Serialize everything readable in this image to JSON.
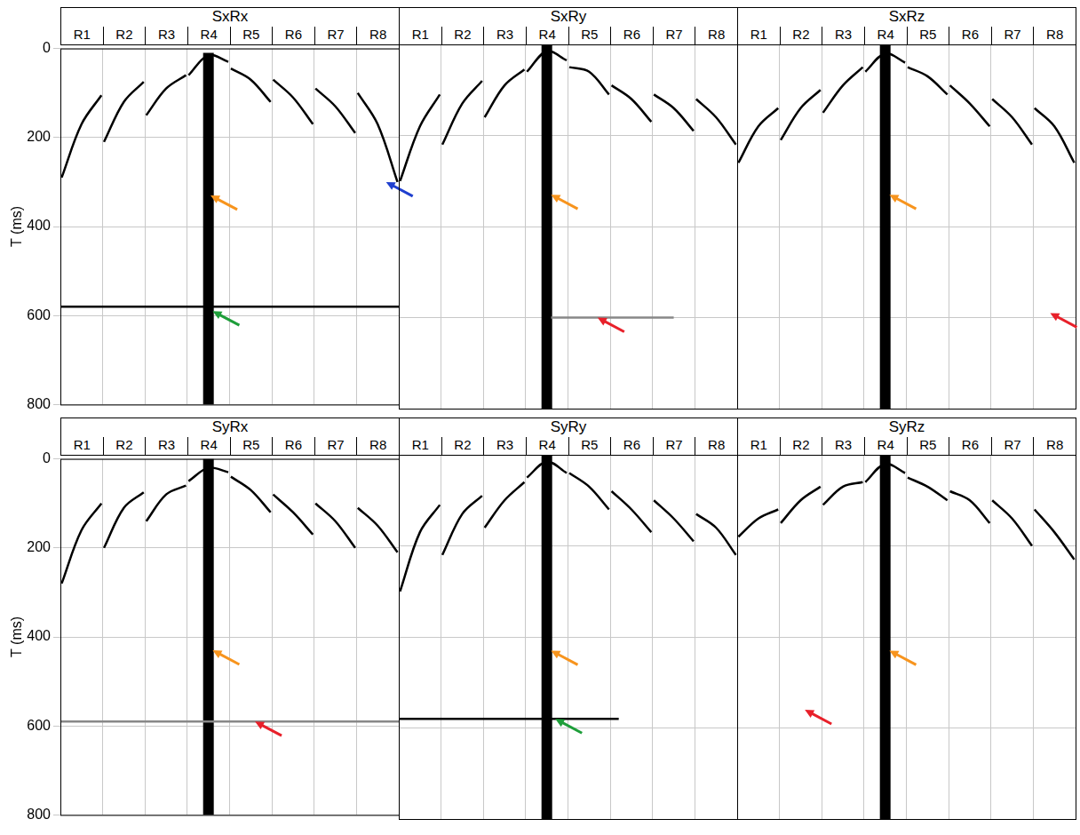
{
  "chart_data": [
    {
      "type": "line",
      "title": "SxRx",
      "categories": [
        "R1",
        "R2",
        "R3",
        "R4",
        "R5",
        "R6",
        "R7",
        "R8"
      ],
      "ylabel": "T (ms)",
      "xlim": [
        0,
        8
      ],
      "xticks": [
        0,
        1,
        2,
        3,
        4,
        5,
        6,
        7,
        8
      ],
      "ylim": [
        0,
        800
      ],
      "yticks": [
        0,
        200,
        400,
        600,
        800
      ],
      "grid": true,
      "tick_labels": "y",
      "series": [
        {
          "type": "line",
          "color": "#000000",
          "x": [
            0.03,
            0.5,
            0.97,
            null,
            1.03,
            1.5,
            1.97,
            null,
            2.03,
            2.5,
            2.97,
            null,
            3.03,
            3.5,
            3.97,
            null,
            4.03,
            4.5,
            4.97,
            null,
            5.03,
            5.5,
            5.97,
            null,
            6.03,
            6.5,
            6.97,
            null,
            7.03,
            7.5,
            7.97
          ],
          "values": [
            290,
            170,
            105,
            null,
            210,
            120,
            75,
            null,
            150,
            90,
            60,
            null,
            60,
            15,
            30,
            null,
            45,
            70,
            120,
            null,
            70,
            110,
            170,
            null,
            90,
            130,
            190,
            null,
            100,
            170,
            300
          ]
        },
        {
          "type": "line",
          "color": "#000000",
          "x": [
            0,
            8
          ],
          "values": [
            580,
            580
          ]
        },
        {
          "type": "band",
          "color": "#000000",
          "x": [
            3.5,
            3.5
          ],
          "values": [
            10,
            800
          ]
        }
      ],
      "arrows": [
        {
          "color": "#f7941d",
          "x": 3.55,
          "y": 330
        },
        {
          "color": "#1f3fcf",
          "x": 7.7,
          "y": 300
        },
        {
          "color": "#1e9e3a",
          "x": 3.6,
          "y": 590
        }
      ]
    },
    {
      "type": "line",
      "title": "SxRy",
      "categories": [
        "R1",
        "R2",
        "R3",
        "R4",
        "R5",
        "R6",
        "R7",
        "R8"
      ],
      "xlim": [
        0,
        8
      ],
      "xticks": [
        0,
        1,
        2,
        3,
        4,
        5,
        6,
        7,
        8
      ],
      "ylim": [
        0,
        800
      ],
      "yticks": [
        0,
        200,
        400,
        600,
        800
      ],
      "grid": true,
      "tick_labels": false,
      "series": [
        {
          "type": "line",
          "color": "#000000",
          "x": [
            0.03,
            0.5,
            0.97,
            null,
            1.03,
            1.5,
            1.97,
            null,
            2.03,
            2.5,
            2.97,
            null,
            3.03,
            3.5,
            3.97,
            null,
            4.03,
            4.5,
            4.97,
            null,
            5.03,
            5.5,
            5.97,
            null,
            6.03,
            6.5,
            6.97,
            null,
            7.03,
            7.5,
            7.97
          ],
          "values": [
            300,
            180,
            110,
            null,
            220,
            130,
            80,
            null,
            160,
            90,
            55,
            null,
            60,
            15,
            35,
            null,
            50,
            60,
            110,
            null,
            90,
            120,
            170,
            null,
            110,
            140,
            190,
            null,
            120,
            160,
            220
          ]
        },
        {
          "type": "line",
          "color": "#888888",
          "x": [
            3.6,
            6.5
          ],
          "values": [
            600,
            600
          ]
        },
        {
          "type": "band",
          "color": "#000000",
          "x": [
            3.5,
            3.5
          ],
          "values": [
            0,
            800
          ]
        }
      ],
      "arrows": [
        {
          "color": "#f7941d",
          "x": 3.6,
          "y": 330
        },
        {
          "color": "#e8202a",
          "x": 4.7,
          "y": 600
        }
      ]
    },
    {
      "type": "line",
      "title": "SxRz",
      "categories": [
        "R1",
        "R2",
        "R3",
        "R4",
        "R5",
        "R6",
        "R7",
        "R8"
      ],
      "xlim": [
        0,
        8
      ],
      "xticks": [
        0,
        1,
        2,
        3,
        4,
        5,
        6,
        7,
        8
      ],
      "ylim": [
        0,
        800
      ],
      "yticks": [
        0,
        200,
        400,
        600,
        800
      ],
      "grid": true,
      "tick_labels": false,
      "series": [
        {
          "type": "line",
          "color": "#000000",
          "x": [
            0.03,
            0.5,
            0.97,
            null,
            1.03,
            1.5,
            1.97,
            null,
            2.03,
            2.5,
            2.97,
            null,
            3.03,
            3.5,
            3.97,
            null,
            4.03,
            4.5,
            4.97,
            null,
            5.03,
            5.5,
            5.97,
            null,
            6.03,
            6.5,
            6.97,
            null,
            7.03,
            7.5,
            7.97
          ],
          "values": [
            260,
            180,
            140,
            null,
            210,
            140,
            100,
            null,
            150,
            90,
            50,
            null,
            60,
            20,
            40,
            null,
            50,
            70,
            110,
            null,
            90,
            130,
            180,
            null,
            120,
            160,
            220,
            null,
            140,
            180,
            260
          ]
        },
        {
          "type": "band",
          "color": "#000000",
          "x": [
            3.5,
            3.5
          ],
          "values": [
            0,
            800
          ]
        }
      ],
      "arrows": [
        {
          "color": "#f7941d",
          "x": 3.6,
          "y": 330
        },
        {
          "color": "#e8202a",
          "x": 7.4,
          "y": 590
        }
      ]
    },
    {
      "type": "line",
      "title": "SyRx",
      "categories": [
        "R1",
        "R2",
        "R3",
        "R4",
        "R5",
        "R6",
        "R7",
        "R8"
      ],
      "ylabel": "T (ms)",
      "xlim": [
        0,
        8
      ],
      "xticks": [
        0,
        1,
        2,
        3,
        4,
        5,
        6,
        7,
        8
      ],
      "ylim": [
        0,
        800
      ],
      "yticks": [
        0,
        200,
        400,
        600,
        800
      ],
      "grid": true,
      "tick_labels": "y",
      "series": [
        {
          "type": "line",
          "color": "#000000",
          "x": [
            0.03,
            0.5,
            0.97,
            null,
            1.03,
            1.5,
            1.97,
            null,
            2.03,
            2.5,
            2.97,
            null,
            3.03,
            3.5,
            3.97,
            null,
            4.03,
            4.5,
            4.97,
            null,
            5.03,
            5.5,
            5.97,
            null,
            6.03,
            6.5,
            6.97,
            null,
            7.03,
            7.5,
            7.97
          ],
          "values": [
            280,
            160,
            100,
            null,
            200,
            110,
            75,
            null,
            140,
            80,
            60,
            null,
            50,
            20,
            30,
            null,
            40,
            70,
            120,
            null,
            80,
            120,
            170,
            null,
            100,
            140,
            200,
            null,
            110,
            150,
            210
          ]
        },
        {
          "type": "line",
          "color": "#888888",
          "x": [
            0,
            8
          ],
          "values": [
            590,
            590
          ]
        },
        {
          "type": "band",
          "color": "#000000",
          "x": [
            3.5,
            3.5
          ],
          "values": [
            0,
            800
          ]
        }
      ],
      "arrows": [
        {
          "color": "#f7941d",
          "x": 3.6,
          "y": 430
        },
        {
          "color": "#e8202a",
          "x": 4.6,
          "y": 590
        }
      ]
    },
    {
      "type": "line",
      "title": "SyRy",
      "categories": [
        "R1",
        "R2",
        "R3",
        "R4",
        "R5",
        "R6",
        "R7",
        "R8"
      ],
      "xlim": [
        0,
        8
      ],
      "xticks": [
        0,
        1,
        2,
        3,
        4,
        5,
        6,
        7,
        8
      ],
      "ylim": [
        0,
        800
      ],
      "yticks": [
        0,
        200,
        400,
        600,
        800
      ],
      "grid": true,
      "tick_labels": false,
      "series": [
        {
          "type": "line",
          "color": "#000000",
          "x": [
            0.03,
            0.5,
            0.97,
            null,
            1.03,
            1.5,
            1.97,
            null,
            2.03,
            2.5,
            2.97,
            null,
            3.03,
            3.5,
            3.97,
            null,
            4.03,
            4.5,
            4.97,
            null,
            5.03,
            5.5,
            5.97,
            null,
            6.03,
            6.5,
            6.97,
            null,
            7.03,
            7.5,
            7.97
          ],
          "values": [
            300,
            170,
            110,
            null,
            220,
            130,
            90,
            null,
            160,
            100,
            60,
            null,
            50,
            15,
            40,
            null,
            40,
            70,
            120,
            null,
            80,
            120,
            170,
            null,
            100,
            140,
            190,
            null,
            130,
            160,
            220
          ]
        },
        {
          "type": "line",
          "color": "#000000",
          "x": [
            0,
            5.2
          ],
          "values": [
            580,
            580
          ]
        },
        {
          "type": "band",
          "color": "#000000",
          "x": [
            3.5,
            3.5
          ],
          "values": [
            0,
            800
          ]
        }
      ],
      "arrows": [
        {
          "color": "#f7941d",
          "x": 3.6,
          "y": 430
        },
        {
          "color": "#1e9e3a",
          "x": 3.7,
          "y": 580
        }
      ]
    },
    {
      "type": "line",
      "title": "SyRz",
      "categories": [
        "R1",
        "R2",
        "R3",
        "R4",
        "R5",
        "R6",
        "R7",
        "R8"
      ],
      "xlim": [
        0,
        8
      ],
      "xticks": [
        0,
        1,
        2,
        3,
        4,
        5,
        6,
        7,
        8
      ],
      "ylim": [
        0,
        800
      ],
      "yticks": [
        0,
        200,
        400,
        600,
        800
      ],
      "grid": true,
      "tick_labels": false,
      "series": [
        {
          "type": "line",
          "color": "#000000",
          "x": [
            0.03,
            0.5,
            0.97,
            null,
            1.03,
            1.5,
            1.97,
            null,
            2.03,
            2.5,
            2.97,
            null,
            3.03,
            3.5,
            3.97,
            null,
            4.03,
            4.5,
            4.97,
            null,
            5.03,
            5.5,
            5.97,
            null,
            6.03,
            6.5,
            6.97,
            null,
            7.03,
            7.5,
            7.97
          ],
          "values": [
            180,
            140,
            120,
            null,
            150,
            100,
            70,
            null,
            110,
            70,
            60,
            null,
            60,
            20,
            40,
            null,
            50,
            70,
            100,
            null,
            80,
            100,
            150,
            null,
            100,
            140,
            200,
            null,
            120,
            170,
            230
          ]
        },
        {
          "type": "band",
          "color": "#000000",
          "x": [
            3.5,
            3.5
          ],
          "values": [
            0,
            800
          ]
        }
      ],
      "arrows": [
        {
          "color": "#f7941d",
          "x": 3.6,
          "y": 430
        },
        {
          "color": "#e8202a",
          "x": 1.6,
          "y": 560
        }
      ]
    }
  ]
}
